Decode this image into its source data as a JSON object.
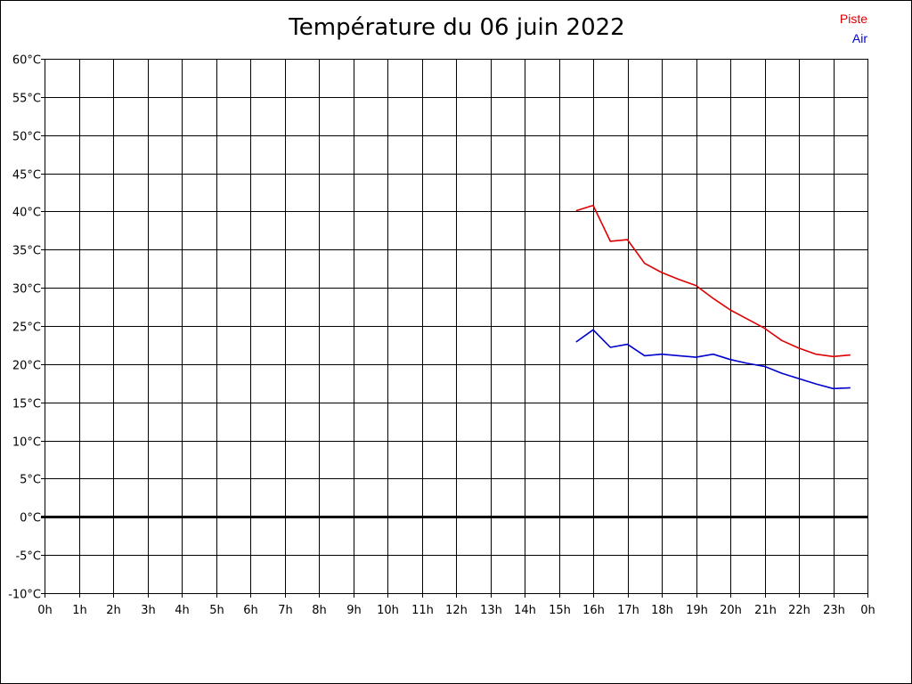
{
  "chart_data": {
    "type": "line",
    "title": "Température du 06 juin 2022",
    "xlabel": "",
    "ylabel": "",
    "xlim": [
      0,
      24
    ],
    "ylim": [
      -10,
      60
    ],
    "grid": true,
    "zero_line": true,
    "legend_position": "top-right",
    "x_ticks": [
      {
        "value": 0,
        "label": "0h"
      },
      {
        "value": 1,
        "label": "1h"
      },
      {
        "value": 2,
        "label": "2h"
      },
      {
        "value": 3,
        "label": "3h"
      },
      {
        "value": 4,
        "label": "4h"
      },
      {
        "value": 5,
        "label": "5h"
      },
      {
        "value": 6,
        "label": "6h"
      },
      {
        "value": 7,
        "label": "7h"
      },
      {
        "value": 8,
        "label": "8h"
      },
      {
        "value": 9,
        "label": "9h"
      },
      {
        "value": 10,
        "label": "10h"
      },
      {
        "value": 11,
        "label": "11h"
      },
      {
        "value": 12,
        "label": "12h"
      },
      {
        "value": 13,
        "label": "13h"
      },
      {
        "value": 14,
        "label": "14h"
      },
      {
        "value": 15,
        "label": "15h"
      },
      {
        "value": 16,
        "label": "16h"
      },
      {
        "value": 17,
        "label": "17h"
      },
      {
        "value": 18,
        "label": "18h"
      },
      {
        "value": 19,
        "label": "19h"
      },
      {
        "value": 20,
        "label": "20h"
      },
      {
        "value": 21,
        "label": "21h"
      },
      {
        "value": 22,
        "label": "22h"
      },
      {
        "value": 23,
        "label": "23h"
      },
      {
        "value": 24,
        "label": "0h"
      }
    ],
    "y_ticks": [
      {
        "value": 60,
        "label": "60°C"
      },
      {
        "value": 55,
        "label": "55°C"
      },
      {
        "value": 50,
        "label": "50°C"
      },
      {
        "value": 45,
        "label": "45°C"
      },
      {
        "value": 40,
        "label": "40°C"
      },
      {
        "value": 35,
        "label": "35°C"
      },
      {
        "value": 30,
        "label": "30°C"
      },
      {
        "value": 25,
        "label": "25°C"
      },
      {
        "value": 20,
        "label": "20°C"
      },
      {
        "value": 15,
        "label": "15°C"
      },
      {
        "value": 10,
        "label": "10°C"
      },
      {
        "value": 5,
        "label": "5°C"
      },
      {
        "value": 0,
        "label": "0°C"
      },
      {
        "value": -5,
        "label": "-5°C"
      },
      {
        "value": -10,
        "label": "-10°C"
      }
    ],
    "series": [
      {
        "name": "Piste",
        "color": "#dd0000",
        "points": [
          [
            15.5,
            40.1
          ],
          [
            16.0,
            40.8
          ],
          [
            16.5,
            36.1
          ],
          [
            17.0,
            36.3
          ],
          [
            17.5,
            33.2
          ],
          [
            18.0,
            32.0
          ],
          [
            18.5,
            31.1
          ],
          [
            19.0,
            30.3
          ],
          [
            19.5,
            28.6
          ],
          [
            20.0,
            27.1
          ],
          [
            20.5,
            25.9
          ],
          [
            21.0,
            24.7
          ],
          [
            21.5,
            23.1
          ],
          [
            22.0,
            22.1
          ],
          [
            22.5,
            21.3
          ],
          [
            23.0,
            21.0
          ],
          [
            23.5,
            21.2
          ]
        ]
      },
      {
        "name": "Air",
        "color": "#0000cc",
        "points": [
          [
            15.5,
            22.9
          ],
          [
            16.0,
            24.5
          ],
          [
            16.5,
            22.2
          ],
          [
            17.0,
            22.6
          ],
          [
            17.5,
            21.1
          ],
          [
            18.0,
            21.3
          ],
          [
            18.5,
            21.1
          ],
          [
            19.0,
            20.9
          ],
          [
            19.5,
            21.3
          ],
          [
            20.0,
            20.6
          ],
          [
            20.5,
            20.1
          ],
          [
            21.0,
            19.7
          ],
          [
            21.5,
            18.8
          ],
          [
            22.0,
            18.1
          ],
          [
            22.5,
            17.4
          ],
          [
            23.0,
            16.8
          ],
          [
            23.5,
            16.9
          ]
        ]
      }
    ]
  }
}
